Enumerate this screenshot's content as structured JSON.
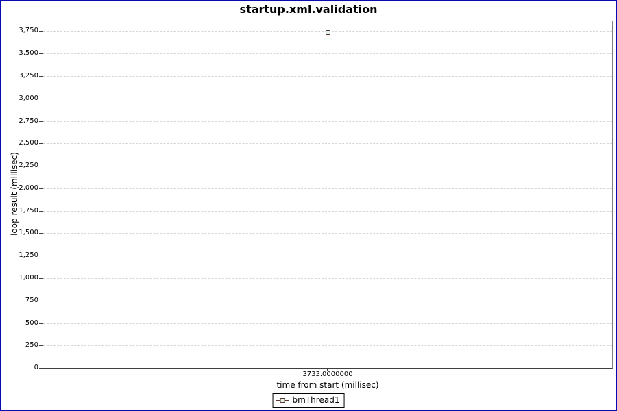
{
  "chart_data": {
    "type": "scatter",
    "title": "startup.xml.validation",
    "xlabel": "time from start (millisec)",
    "ylabel": "loop result (millisec)",
    "series": [
      {
        "name": "bmThread1",
        "marker_icon": "square-on-line-icon",
        "points": [
          {
            "x": 3733.0,
            "y": 3733
          }
        ]
      }
    ],
    "x_tick_labels": [
      "3733.0000000"
    ],
    "y_tick_labels": [
      "0",
      "250",
      "500",
      "750",
      "1,000",
      "1,250",
      "1,500",
      "1,750",
      "2,000",
      "2,250",
      "2,500",
      "2,750",
      "3,000",
      "3,250",
      "3,500",
      "3,750"
    ],
    "y_tick_step": 250,
    "ylim": [
      0,
      3860
    ],
    "grid": "dashed",
    "legend_position": "bottom"
  },
  "legend": {
    "items": [
      {
        "label": "bmThread1"
      }
    ]
  },
  "colors": {
    "frame_border": "#0a0ab4",
    "plot_outline": "#808080",
    "axis_line": "#3f3f3f",
    "gridline": "#d6d6d6",
    "series_stroke": "#5f3732",
    "series_fill": "#dff2e6",
    "text": "#000000",
    "background": "#ffffff"
  }
}
